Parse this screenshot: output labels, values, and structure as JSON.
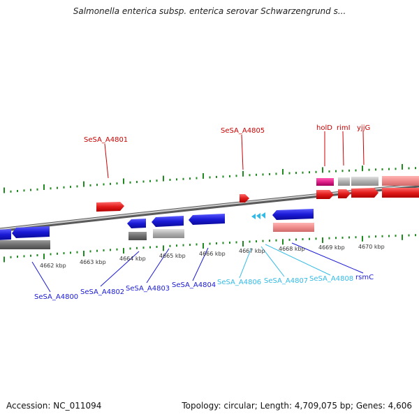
{
  "title": "Salmonella enterica subsp. enterica serovar Schwarzengrund s...",
  "footer": {
    "accession": "Accession: NC_011094",
    "summary": "Topology: circular; Length: 4,709,075 bp; Genes: 4,606"
  },
  "colors": {
    "tick": "#1f8a1f",
    "backbone": "#8a8a8a",
    "forward_cds": "#e11b1b",
    "reverse_cds": "#1a1ad6",
    "rna": "#33bbe6",
    "pseudo_gray": "#b0b0b0",
    "dark_gray": "#6e6e6e",
    "pink": "#f08c8c",
    "magenta": "#e0208a",
    "label_top": "#cc0000",
    "label_blue": "#1a1ad6",
    "label_cyan": "#33bbe6"
  },
  "scale_labels": [
    "4662 kbp",
    "4663 kbp",
    "4664 kbp",
    "4665 kbp",
    "4666 kbp",
    "4667 kbp",
    "4668 kbp",
    "4669 kbp",
    "4670 kbp"
  ],
  "gene_labels_top": [
    "SeSA_A4801",
    "SeSA_A4805",
    "holD",
    "rimI",
    "yjjG"
  ],
  "gene_labels_bottom": [
    "SeSA_A4800",
    "SeSA_A4802",
    "SeSA_A4803",
    "SeSA_A4804",
    "SeSA_A4806",
    "SeSA_A4807",
    "SeSA_A4808",
    "rsmC"
  ]
}
